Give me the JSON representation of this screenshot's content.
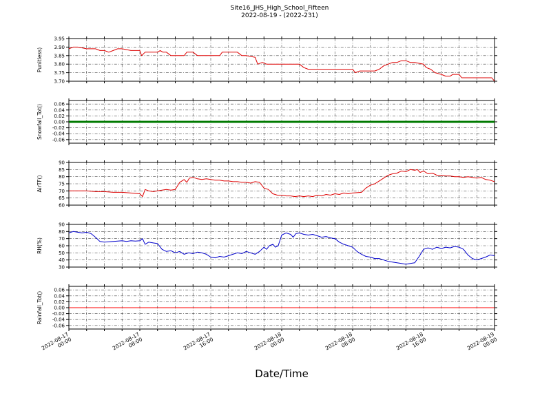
{
  "title": {
    "line1": "Site16_JHS_High_School_Fifteen",
    "line2": "2022-08-19 - (2022-231)"
  },
  "x_axis": {
    "title": "Date/Time",
    "hours": [
      0,
      8,
      16,
      24,
      32,
      40,
      48
    ],
    "labels": [
      [
        "2022-08-17",
        "00:00"
      ],
      [
        "2022-08-17",
        "08:00"
      ],
      [
        "2022-08-17",
        "16:00"
      ],
      [
        "2022-08-18",
        "00:00"
      ],
      [
        "2022-08-18",
        "08:00"
      ],
      [
        "2022-08-18",
        "16:00"
      ],
      [
        "2022-08-19",
        "00:00"
      ]
    ]
  },
  "chart_data": [
    {
      "id": "punitless",
      "type": "line",
      "ylabel": "Punitless)",
      "color": "#dd0000",
      "lw": 1,
      "ylim": [
        3.7,
        3.95
      ],
      "yticks": [
        3.7,
        3.75,
        3.8,
        3.85,
        3.9,
        3.95
      ],
      "ytick_labels": [
        "3.70",
        "3.75",
        "3.80",
        "3.85",
        "3.90",
        "3.95"
      ],
      "points": [
        [
          0,
          3.89
        ],
        [
          0.5,
          3.9
        ],
        [
          1,
          3.9
        ],
        [
          2,
          3.89
        ],
        [
          3,
          3.89
        ],
        [
          3.5,
          3.88
        ],
        [
          4,
          3.88
        ],
        [
          4.5,
          3.87
        ],
        [
          5,
          3.88
        ],
        [
          5.5,
          3.89
        ],
        [
          6,
          3.89
        ],
        [
          7,
          3.88
        ],
        [
          8,
          3.88
        ],
        [
          8.2,
          3.85
        ],
        [
          8.6,
          3.87
        ],
        [
          9,
          3.87
        ],
        [
          10,
          3.87
        ],
        [
          10.3,
          3.88
        ],
        [
          10.6,
          3.87
        ],
        [
          11,
          3.87
        ],
        [
          11.5,
          3.85
        ],
        [
          12,
          3.85
        ],
        [
          13,
          3.85
        ],
        [
          13.3,
          3.87
        ],
        [
          14,
          3.87
        ],
        [
          14.5,
          3.85
        ],
        [
          15,
          3.85
        ],
        [
          16,
          3.85
        ],
        [
          17,
          3.85
        ],
        [
          17.3,
          3.87
        ],
        [
          18,
          3.87
        ],
        [
          19,
          3.87
        ],
        [
          19.5,
          3.85
        ],
        [
          20,
          3.85
        ],
        [
          21,
          3.84
        ],
        [
          21.3,
          3.8
        ],
        [
          21.8,
          3.81
        ],
        [
          22.3,
          3.8
        ],
        [
          23,
          3.8
        ],
        [
          24,
          3.8
        ],
        [
          25,
          3.8
        ],
        [
          26,
          3.8
        ],
        [
          26.5,
          3.78
        ],
        [
          27,
          3.77
        ],
        [
          28,
          3.77
        ],
        [
          29,
          3.77
        ],
        [
          30,
          3.77
        ],
        [
          31,
          3.77
        ],
        [
          32,
          3.77
        ],
        [
          32.3,
          3.75
        ],
        [
          32.8,
          3.76
        ],
        [
          33.5,
          3.76
        ],
        [
          34.5,
          3.76
        ],
        [
          35,
          3.77
        ],
        [
          35.5,
          3.79
        ],
        [
          36,
          3.8
        ],
        [
          36.5,
          3.81
        ],
        [
          37,
          3.81
        ],
        [
          37.5,
          3.82
        ],
        [
          38,
          3.82
        ],
        [
          38.5,
          3.81
        ],
        [
          39,
          3.81
        ],
        [
          40,
          3.8
        ],
        [
          40.3,
          3.78
        ],
        [
          40.8,
          3.77
        ],
        [
          41.3,
          3.75
        ],
        [
          42,
          3.74
        ],
        [
          42.5,
          3.73
        ],
        [
          43,
          3.73
        ],
        [
          43.3,
          3.74
        ],
        [
          44,
          3.74
        ],
        [
          44.3,
          3.72
        ],
        [
          45,
          3.72
        ],
        [
          46,
          3.72
        ],
        [
          47,
          3.72
        ],
        [
          47.7,
          3.72
        ],
        [
          48,
          3.7
        ]
      ]
    },
    {
      "id": "snowfall",
      "type": "line",
      "ylabel": "Snowfall_Tot()",
      "color": "#007a00",
      "lw": 3,
      "ylim": [
        -0.072,
        0.072
      ],
      "yticks": [
        -0.06,
        -0.04,
        -0.02,
        0.0,
        0.02,
        0.04,
        0.06
      ],
      "ytick_labels": [
        "-0.06",
        "-0.04",
        "-0.02",
        "0.00",
        "0.02",
        "0.04",
        "0.06"
      ],
      "points": [
        [
          0,
          0
        ],
        [
          48,
          0
        ]
      ]
    },
    {
      "id": "airtf",
      "type": "line",
      "ylabel": "AirTF()",
      "color": "#dd0000",
      "lw": 1,
      "ylim": [
        60,
        90
      ],
      "yticks": [
        60,
        65,
        70,
        75,
        80,
        85,
        90
      ],
      "ytick_labels": [
        "60",
        "65",
        "70",
        "75",
        "80",
        "85",
        "90"
      ],
      "points": [
        [
          0,
          70
        ],
        [
          1,
          70
        ],
        [
          2,
          70
        ],
        [
          3,
          69.5
        ],
        [
          4,
          69.5
        ],
        [
          5,
          69
        ],
        [
          6,
          69
        ],
        [
          7,
          68.5
        ],
        [
          8,
          68
        ],
        [
          8.3,
          66
        ],
        [
          8.6,
          71
        ],
        [
          9,
          70
        ],
        [
          9.5,
          69.5
        ],
        [
          10,
          70
        ],
        [
          10.5,
          70.5
        ],
        [
          11,
          71
        ],
        [
          11.5,
          70.5
        ],
        [
          12,
          71
        ],
        [
          12.5,
          76
        ],
        [
          13,
          78
        ],
        [
          13.3,
          76
        ],
        [
          13.6,
          79
        ],
        [
          14,
          79.5
        ],
        [
          14.5,
          78.5
        ],
        [
          15,
          78
        ],
        [
          15.5,
          78.5
        ],
        [
          16,
          78
        ],
        [
          16.5,
          77.5
        ],
        [
          17,
          77.5
        ],
        [
          17.5,
          77
        ],
        [
          18,
          77
        ],
        [
          18.5,
          76.5
        ],
        [
          19,
          76.5
        ],
        [
          19.5,
          76
        ],
        [
          20,
          76
        ],
        [
          20.5,
          75.5
        ],
        [
          21,
          76.5
        ],
        [
          21.5,
          76
        ],
        [
          22,
          72
        ],
        [
          22.5,
          71
        ],
        [
          23,
          68
        ],
        [
          23.5,
          67
        ],
        [
          24,
          67
        ],
        [
          24.5,
          66.5
        ],
        [
          25,
          66.5
        ],
        [
          25.5,
          66
        ],
        [
          26,
          66.5
        ],
        [
          26.5,
          66
        ],
        [
          27,
          66.5
        ],
        [
          27.5,
          66
        ],
        [
          28,
          67
        ],
        [
          28.5,
          66.5
        ],
        [
          29,
          67.5
        ],
        [
          29.5,
          67
        ],
        [
          30,
          68
        ],
        [
          30.5,
          67.5
        ],
        [
          31,
          68.5
        ],
        [
          31.5,
          68
        ],
        [
          32,
          68.5
        ],
        [
          33,
          69
        ],
        [
          33.5,
          72
        ],
        [
          34,
          74
        ],
        [
          34.5,
          75
        ],
        [
          35,
          77
        ],
        [
          35.5,
          79
        ],
        [
          36,
          81
        ],
        [
          36.5,
          82
        ],
        [
          37,
          82.5
        ],
        [
          37.5,
          84
        ],
        [
          38,
          83.5
        ],
        [
          38.5,
          85
        ],
        [
          39,
          84.5
        ],
        [
          39.3,
          85
        ],
        [
          39.6,
          83
        ],
        [
          40,
          84
        ],
        [
          40.5,
          82
        ],
        [
          41,
          82.5
        ],
        [
          41.5,
          81
        ],
        [
          42,
          81
        ],
        [
          42.5,
          80.5
        ],
        [
          43,
          80.5
        ],
        [
          43.5,
          80
        ],
        [
          44,
          80
        ],
        [
          44.5,
          79.5
        ],
        [
          45,
          80
        ],
        [
          45.5,
          79.5
        ],
        [
          46,
          79
        ],
        [
          46.5,
          79.5
        ],
        [
          47,
          78
        ],
        [
          47.5,
          77.5
        ],
        [
          48,
          76.5
        ]
      ]
    },
    {
      "id": "rh",
      "type": "line",
      "ylabel": "RH(%)",
      "color": "#0000cc",
      "lw": 1,
      "ylim": [
        30,
        90
      ],
      "yticks": [
        30,
        40,
        50,
        60,
        70,
        80,
        90
      ],
      "ytick_labels": [
        "30",
        "40",
        "50",
        "60",
        "70",
        "80",
        "90"
      ],
      "points": [
        [
          0,
          78
        ],
        [
          0.5,
          80
        ],
        [
          1,
          79
        ],
        [
          1.5,
          78
        ],
        [
          2,
          79
        ],
        [
          2.5,
          77
        ],
        [
          3,
          72
        ],
        [
          3.5,
          66
        ],
        [
          4,
          65
        ],
        [
          5,
          66
        ],
        [
          6,
          67
        ],
        [
          6.5,
          66
        ],
        [
          7,
          67
        ],
        [
          7.5,
          66.5
        ],
        [
          8,
          67
        ],
        [
          8.3,
          70
        ],
        [
          8.6,
          62
        ],
        [
          9,
          65
        ],
        [
          9.5,
          64
        ],
        [
          10,
          63
        ],
        [
          10.5,
          55
        ],
        [
          11,
          52
        ],
        [
          11.5,
          53
        ],
        [
          12,
          50
        ],
        [
          12.5,
          52
        ],
        [
          13,
          48
        ],
        [
          13.5,
          50
        ],
        [
          14,
          49
        ],
        [
          14.5,
          51
        ],
        [
          15,
          50
        ],
        [
          15.5,
          48
        ],
        [
          16,
          44
        ],
        [
          16.5,
          43
        ],
        [
          17,
          45
        ],
        [
          17.5,
          44
        ],
        [
          18,
          46
        ],
        [
          18.5,
          48
        ],
        [
          19,
          50
        ],
        [
          19.5,
          49
        ],
        [
          20,
          52
        ],
        [
          20.5,
          50
        ],
        [
          21,
          48
        ],
        [
          21.5,
          52
        ],
        [
          22,
          58
        ],
        [
          22.3,
          55
        ],
        [
          22.6,
          60
        ],
        [
          23,
          62
        ],
        [
          23.3,
          58
        ],
        [
          23.6,
          60
        ],
        [
          24,
          75
        ],
        [
          24.5,
          78
        ],
        [
          25,
          76
        ],
        [
          25.3,
          72
        ],
        [
          25.6,
          77
        ],
        [
          26,
          78
        ],
        [
          26.5,
          76
        ],
        [
          27,
          75
        ],
        [
          27.5,
          76
        ],
        [
          28,
          74
        ],
        [
          28.5,
          72
        ],
        [
          29,
          73
        ],
        [
          29.5,
          71
        ],
        [
          30,
          70
        ],
        [
          30.5,
          65
        ],
        [
          31,
          62
        ],
        [
          31.5,
          60
        ],
        [
          32,
          58
        ],
        [
          32.5,
          52
        ],
        [
          33,
          48
        ],
        [
          33.5,
          45
        ],
        [
          34,
          44
        ],
        [
          34.5,
          42
        ],
        [
          35,
          42
        ],
        [
          35.5,
          40
        ],
        [
          36,
          38
        ],
        [
          36.5,
          37
        ],
        [
          37,
          36
        ],
        [
          37.5,
          35
        ],
        [
          38,
          34
        ],
        [
          38.5,
          35
        ],
        [
          39,
          36
        ],
        [
          39.5,
          45
        ],
        [
          40,
          55
        ],
        [
          40.5,
          57
        ],
        [
          41,
          55
        ],
        [
          41.5,
          58
        ],
        [
          42,
          56
        ],
        [
          42.5,
          58
        ],
        [
          43,
          57
        ],
        [
          43.5,
          59
        ],
        [
          44,
          58
        ],
        [
          44.5,
          55
        ],
        [
          45,
          47
        ],
        [
          45.5,
          42
        ],
        [
          46,
          40
        ],
        [
          46.5,
          42
        ],
        [
          47,
          44
        ],
        [
          47.5,
          47
        ],
        [
          48,
          46
        ]
      ]
    },
    {
      "id": "rainfall",
      "type": "line",
      "ylabel": "Rainfall_Tot()",
      "color": "#ff0000",
      "lw": 1,
      "ylim": [
        -0.072,
        0.072
      ],
      "yticks": [
        -0.06,
        -0.04,
        -0.02,
        0.0,
        0.02,
        0.04,
        0.06
      ],
      "ytick_labels": [
        "-0.06",
        "-0.04",
        "-0.02",
        "0.00",
        "0.02",
        "0.04",
        "0.06"
      ],
      "points": [
        [
          0,
          0
        ],
        [
          48,
          0
        ]
      ]
    }
  ]
}
